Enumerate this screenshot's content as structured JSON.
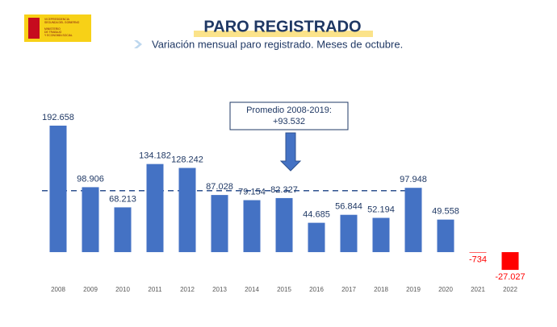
{
  "logo": {
    "lines": [
      "VICEPRESIDENCIA",
      "SEGUNDA DEL GOBIERNO",
      "MINISTERIO",
      "DE TRABAJO",
      "Y ECONOMÍA SOCIAL"
    ]
  },
  "chart_data": {
    "type": "bar",
    "title": "PARO REGISTRADO",
    "subtitle": "Variación mensual paro registrado. Meses de octubre.",
    "categories": [
      "2008",
      "2009",
      "2010",
      "2011",
      "2012",
      "2013",
      "2014",
      "2015",
      "2016",
      "2017",
      "2018",
      "2019",
      "2020",
      "2021",
      "2022"
    ],
    "values": [
      192658,
      98906,
      68213,
      134182,
      128242,
      87028,
      79154,
      82327,
      44685,
      56844,
      52194,
      97948,
      49558,
      -734,
      -27027
    ],
    "value_labels": [
      "192.658",
      "98.906",
      "68.213",
      "134.182",
      "128.242",
      "87.028",
      "79.154",
      "82.327",
      "44.685",
      "56.844",
      "52.194",
      "97.948",
      "49.558",
      "-734",
      "-27.027"
    ],
    "color": "#4472c4",
    "negative_color": "#ff0000",
    "ylim": [
      -30000,
      200000
    ],
    "average": {
      "value": 93532,
      "label": "+93.532"
    },
    "average_title": "Promedio 2008-2019:"
  }
}
